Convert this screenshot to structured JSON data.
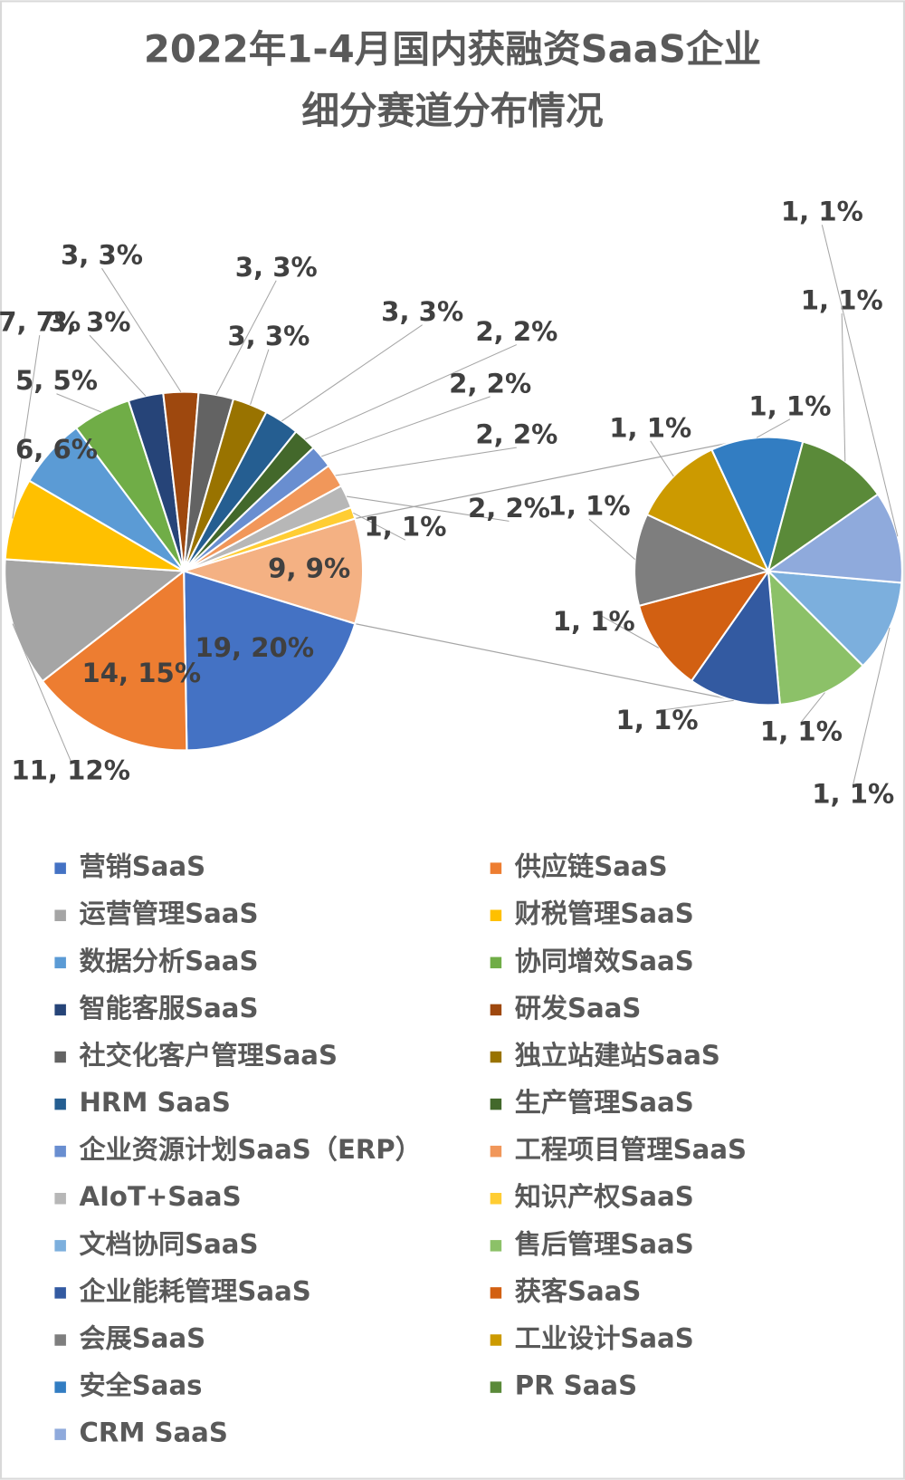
{
  "chart_data": {
    "type": "pie-of-pie",
    "title": [
      "2022年1-4月国内获融资SaaS企业",
      "细分赛道分布情况"
    ],
    "categories": [
      "营销SaaS",
      "供应链SaaS",
      "运营管理SaaS",
      "财税管理SaaS",
      "数据分析SaaS",
      "协同增效SaaS",
      "智能客服SaaS",
      "研发SaaS",
      "社交化客户管理SaaS",
      "独立站建站SaaS",
      "HRM SaaS",
      "生产管理SaaS",
      "企业资源计划SaaS（ERP）",
      "工程项目管理SaaS",
      "AIoT+SaaS",
      "知识产权SaaS",
      "文档协同SaaS",
      "售后管理SaaS",
      "企业能耗管理SaaS",
      "获客SaaS",
      "会展SaaS",
      "工业设计SaaS",
      "安全Saas",
      "PR SaaS",
      "CRM SaaS"
    ],
    "values": [
      19,
      14,
      11,
      7,
      6,
      5,
      3,
      3,
      3,
      3,
      3,
      2,
      2,
      2,
      2,
      1,
      1,
      1,
      1,
      1,
      1,
      1,
      1,
      1,
      1
    ],
    "value_labels": [
      "19, 20%",
      "14, 15%",
      "11, 12%",
      "7, 7%",
      "6, 6%",
      "5, 5%",
      "3, 3%",
      "3, 3%",
      "3, 3%",
      "3, 3%",
      "3, 3%",
      "2, 2%",
      "2, 2%",
      "2, 2%",
      "2, 2%",
      "1, 1%",
      "1, 1%",
      "1, 1%",
      "1, 1%",
      "1, 1%",
      "1, 1%",
      "1, 1%",
      "1, 1%",
      "1, 1%",
      "1, 1%"
    ],
    "colors": [
      "#4472C4",
      "#ED7D31",
      "#A5A5A5",
      "#FFC000",
      "#5B9BD5",
      "#70AD47",
      "#264478",
      "#9E480E",
      "#636363",
      "#997300",
      "#255E91",
      "#43682B",
      "#698ED0",
      "#F1975A",
      "#B7B7B7",
      "#FFCD33",
      "#7CAFDD",
      "#8CC168",
      "#335AA1",
      "#D26012",
      "#7E7E7E",
      "#CC9A00",
      "#327DC2",
      "#5A8A39",
      "#8FAADC"
    ],
    "secondary_plot_count": 9,
    "other_value": 9,
    "other_label": "9, 9%",
    "other_color": "#F4B183",
    "legend": "bottom"
  }
}
